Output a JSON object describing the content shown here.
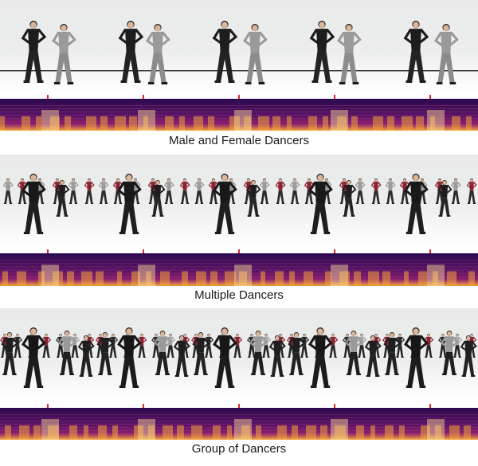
{
  "panels": [
    {
      "caption": "Male and Female Dancers",
      "scene": "duo",
      "frames": 5,
      "beat_markers": 5
    },
    {
      "caption": "Multiple Dancers",
      "scene": "multiple",
      "frames": 5,
      "beat_markers": 5
    },
    {
      "caption": "Group of Dancers",
      "scene": "group",
      "frames": 5,
      "beat_markers": 5
    }
  ],
  "colors": {
    "beat_marker": "#e0242c",
    "spectrogram_low": "#2b0a4e",
    "spectrogram_mid": "#8a1f6e",
    "spectrogram_high": "#f3a33b",
    "spectrogram_peak": "#fde49a"
  }
}
